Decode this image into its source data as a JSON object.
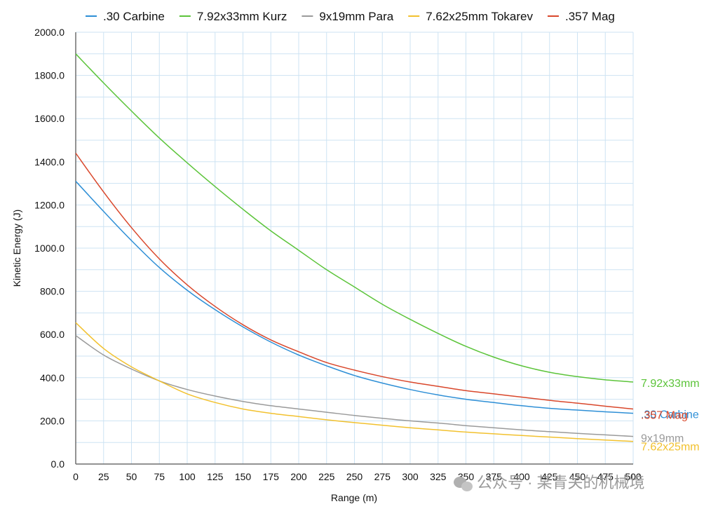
{
  "chart_data": {
    "type": "line",
    "xlabel": "Range (m)",
    "ylabel": "Kinetic Energy (J)",
    "xlim": [
      0,
      500
    ],
    "ylim": [
      0,
      2000
    ],
    "x_ticks": [
      0,
      25,
      50,
      75,
      100,
      125,
      150,
      175,
      200,
      225,
      250,
      275,
      300,
      325,
      350,
      375,
      400,
      425,
      450,
      475,
      500
    ],
    "y_ticks": [
      "0.0",
      "200.0",
      "400.0",
      "600.0",
      "800.0",
      "1000.0",
      "1200.0",
      "1400.0",
      "1600.0",
      "1800.0",
      "2000.0"
    ],
    "grid": true,
    "legend_position": "top",
    "x": [
      0,
      25,
      50,
      75,
      100,
      125,
      150,
      175,
      200,
      225,
      250,
      275,
      300,
      325,
      350,
      375,
      400,
      425,
      450,
      475,
      500
    ],
    "series": [
      {
        "name": ".30 Carbine",
        "end_label": ".30 Carbine",
        "color": "#2e8fd6",
        "values": [
          1310,
          1170,
          1035,
          910,
          805,
          715,
          635,
          565,
          505,
          455,
          410,
          375,
          345,
          320,
          300,
          285,
          270,
          258,
          250,
          242,
          235
        ]
      },
      {
        "name": "7.92x33mm Kurz",
        "end_label": "7.92x33mm",
        "color": "#5cc43a",
        "values": [
          1900,
          1765,
          1635,
          1510,
          1395,
          1285,
          1180,
          1080,
          990,
          900,
          820,
          740,
          670,
          605,
          545,
          495,
          455,
          425,
          405,
          390,
          380
        ]
      },
      {
        "name": "9x19mm Para",
        "end_label": "9x19mm",
        "color": "#9a9a9a",
        "values": [
          595,
          505,
          440,
          385,
          345,
          315,
          290,
          270,
          255,
          240,
          225,
          212,
          200,
          190,
          178,
          168,
          158,
          150,
          142,
          135,
          128
        ]
      },
      {
        "name": "7.62x25mm Tokarev",
        "end_label": "7.62x25mm",
        "color": "#f2c12e",
        "values": [
          655,
          535,
          450,
          385,
          325,
          285,
          255,
          235,
          220,
          205,
          192,
          180,
          168,
          158,
          148,
          140,
          132,
          125,
          118,
          111,
          105
        ]
      },
      {
        "name": ".357 Mag",
        "end_label": ".357 Mag",
        "color": "#d9472b",
        "values": [
          1440,
          1260,
          1095,
          950,
          830,
          730,
          645,
          575,
          520,
          470,
          435,
          405,
          380,
          360,
          340,
          325,
          310,
          295,
          282,
          268,
          255
        ]
      }
    ]
  },
  "watermark": "公众号 · 某青关的机械境",
  "watermark_icon": "wechat-icon"
}
